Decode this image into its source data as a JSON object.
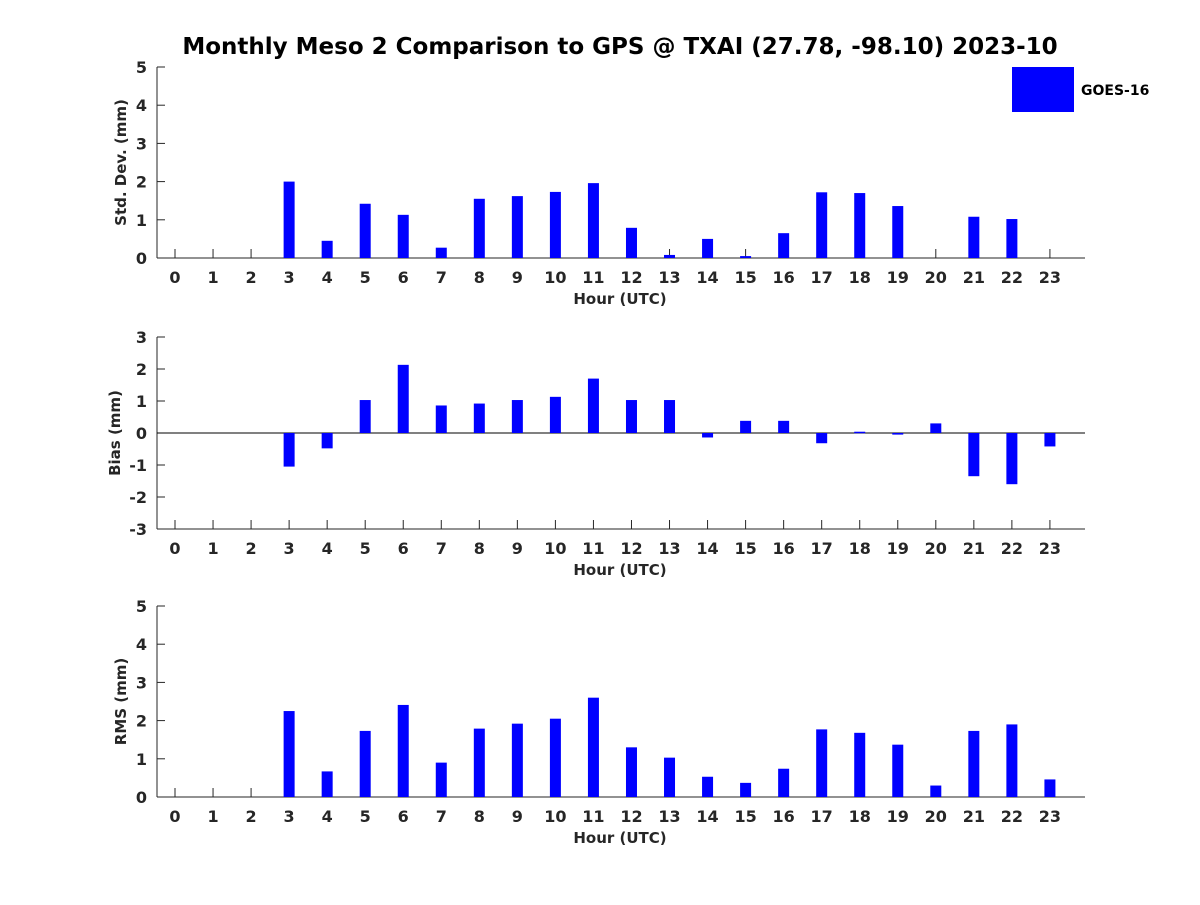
{
  "chart_data": {
    "title": "Monthly Meso 2 Comparison to GPS @ TXAI (27.78, -98.10) 2023-10",
    "bar_color": "#0000ff",
    "legend": {
      "label": "GOES-16",
      "placement": "top-right"
    },
    "panels": [
      {
        "type": "bar",
        "xlabel": "Hour (UTC)",
        "ylabel": "Std. Dev. (mm)",
        "ylim": [
          0,
          5
        ],
        "yticks": [
          "0",
          "1",
          "2",
          "3",
          "4",
          "5"
        ],
        "categories": [
          "0",
          "1",
          "2",
          "3",
          "4",
          "5",
          "6",
          "7",
          "8",
          "9",
          "10",
          "11",
          "12",
          "13",
          "14",
          "15",
          "16",
          "17",
          "18",
          "19",
          "20",
          "21",
          "22",
          "23"
        ],
        "series": [
          {
            "name": "GOES-16",
            "values": [
              null,
              null,
              null,
              2.0,
              0.45,
              1.42,
              1.13,
              0.27,
              1.55,
              1.62,
              1.73,
              1.96,
              0.79,
              0.08,
              0.5,
              0.05,
              0.65,
              1.72,
              1.7,
              1.36,
              null,
              1.08,
              1.02,
              null
            ]
          }
        ]
      },
      {
        "type": "bar",
        "xlabel": "Hour (UTC)",
        "ylabel": "Bias (mm)",
        "ylim": [
          -3,
          3
        ],
        "yticks": [
          "-3",
          "-2",
          "-1",
          "0",
          "1",
          "2",
          "3"
        ],
        "categories": [
          "0",
          "1",
          "2",
          "3",
          "4",
          "5",
          "6",
          "7",
          "8",
          "9",
          "10",
          "11",
          "12",
          "13",
          "14",
          "15",
          "16",
          "17",
          "18",
          "19",
          "20",
          "21",
          "22",
          "23"
        ],
        "series": [
          {
            "name": "GOES-16",
            "values": [
              null,
              null,
              null,
              -1.05,
              -0.48,
              1.03,
              2.13,
              0.86,
              0.92,
              1.03,
              1.13,
              1.7,
              1.03,
              1.03,
              -0.14,
              0.38,
              0.38,
              -0.32,
              0.04,
              -0.05,
              0.3,
              -1.35,
              -1.6,
              -0.42
            ]
          }
        ]
      },
      {
        "type": "bar",
        "xlabel": "Hour (UTC)",
        "ylabel": "RMS (mm)",
        "ylim": [
          0,
          5
        ],
        "yticks": [
          "0",
          "1",
          "2",
          "3",
          "4",
          "5"
        ],
        "categories": [
          "0",
          "1",
          "2",
          "3",
          "4",
          "5",
          "6",
          "7",
          "8",
          "9",
          "10",
          "11",
          "12",
          "13",
          "14",
          "15",
          "16",
          "17",
          "18",
          "19",
          "20",
          "21",
          "22",
          "23"
        ],
        "series": [
          {
            "name": "GOES-16",
            "values": [
              null,
              null,
              null,
              2.25,
              0.67,
              1.73,
              2.41,
              0.9,
              1.79,
              1.92,
              2.05,
              2.6,
              1.3,
              1.03,
              0.53,
              0.37,
              0.74,
              1.77,
              1.68,
              1.37,
              0.3,
              1.73,
              1.9,
              0.46
            ]
          }
        ]
      }
    ]
  }
}
